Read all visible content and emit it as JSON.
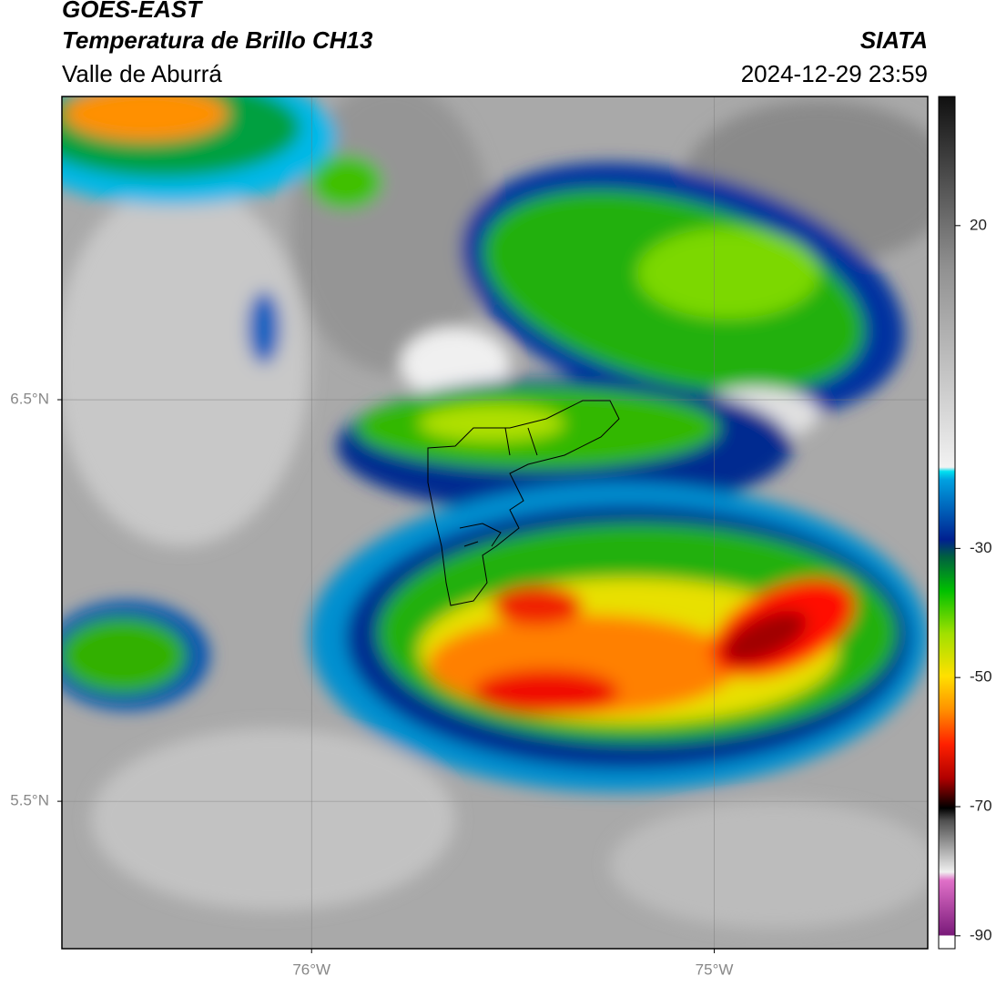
{
  "header": {
    "title": "GOES-EAST",
    "subtitle": "Temperatura de Brillo CH13",
    "region": "Valle de Aburrá",
    "source": "SIATA",
    "datetime": "2024-12-29 23:59"
  },
  "map": {
    "xlim": [
      -76.62,
      -74.47
    ],
    "ylim": [
      5.133,
      7.255
    ],
    "xticks": [
      {
        "value": -76,
        "label": "76°W"
      },
      {
        "value": -75,
        "label": "75°W"
      }
    ],
    "yticks": [
      {
        "value": 6.5,
        "label": "6.5°N"
      },
      {
        "value": 5.5,
        "label": "5.5°N"
      }
    ],
    "grid": true
  },
  "colorbar": {
    "lim": [
      -92,
      40
    ],
    "ticks": [
      20,
      -30,
      -50,
      -70,
      -90
    ]
  }
}
